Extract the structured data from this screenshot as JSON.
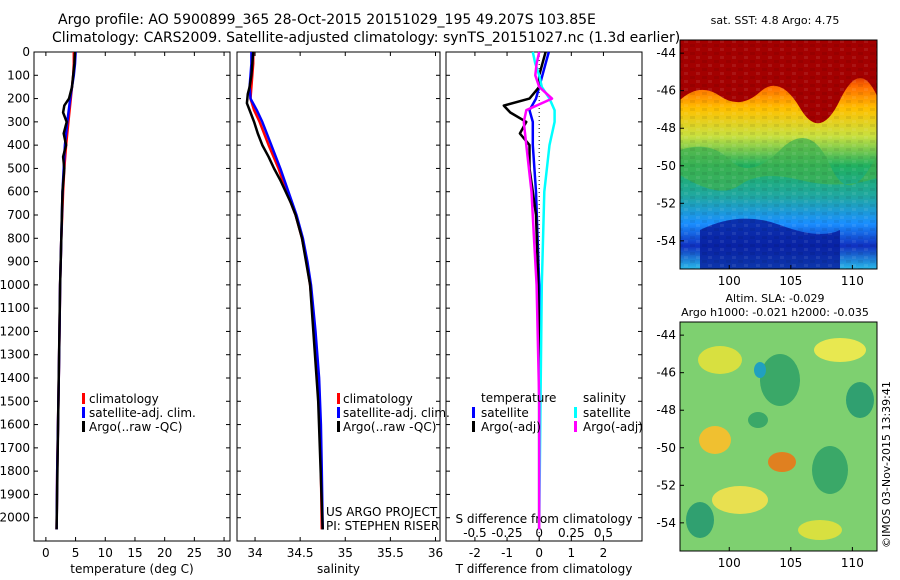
{
  "header": {
    "line1": "Argo profile: AO 5900899_365 28-Oct-2015 20151029_195 49.207S 103.85E",
    "line2": "Climatology: CARS2009. Satellite-adjusted climatology: synTS_20151027.nc (1.3d earlier)"
  },
  "legend_temp": {
    "clim": "climatology",
    "sat": "satellite-adj. clim.",
    "argo": "Argo(..raw -QC)"
  },
  "legend_sal": {
    "clim": "climatology",
    "sat": "satellite-adj. clim.",
    "argo": "Argo(..raw -QC)"
  },
  "legend_diff": {
    "temp_head": "temperature",
    "sal_head": "salinity",
    "t_sat": "satellite",
    "t_argo": "Argo(-adj)",
    "s_sat": "satellite",
    "s_argo": "Argo(-adj)"
  },
  "project": {
    "line1": "US ARGO PROJECT",
    "line2": "PI: STEPHEN RISER"
  },
  "map1": {
    "title": "sat. SST: 4.8 Argo: 4.75"
  },
  "map2": {
    "title1": "Altim. SLA: -0.029",
    "title2": "Argo h1000: -0.021 h2000: -0.035"
  },
  "credit": "©IMOS 03-Nov-2015 13:39:41",
  "colors": {
    "climatology": "#ff0000",
    "satellite": "#0000ff",
    "argo": "#000000",
    "t_sat": "#0000ff",
    "t_argo": "#000000",
    "s_sat": "#00ffff",
    "s_argo": "#ff00ff"
  },
  "chart_data": [
    {
      "type": "line",
      "xlabel": "temperature (deg C)",
      "ylabel": "",
      "xlim": [
        -2,
        31
      ],
      "ylim": [
        2100,
        0
      ],
      "xticks": [
        0,
        5,
        10,
        15,
        20,
        25,
        30
      ],
      "yticks": [
        0,
        100,
        200,
        300,
        400,
        500,
        600,
        700,
        800,
        900,
        1000,
        1100,
        1200,
        1300,
        1400,
        1500,
        1600,
        1700,
        1800,
        1900,
        2000
      ],
      "series": [
        {
          "name": "climatology",
          "color": "#ff0000",
          "depth": [
            0,
            50,
            100,
            150,
            200,
            300,
            400,
            500,
            600,
            800,
            1000,
            1200,
            1500,
            1800,
            2050
          ],
          "values": [
            4.7,
            4.7,
            4.6,
            4.4,
            4.2,
            3.8,
            3.4,
            3.1,
            2.9,
            2.6,
            2.4,
            2.3,
            2.1,
            1.9,
            1.8
          ]
        },
        {
          "name": "satellite-adj. clim.",
          "color": "#0000ff",
          "depth": [
            0,
            50,
            100,
            150,
            200,
            300,
            400,
            500,
            600,
            800,
            1000,
            1200,
            1500,
            1800,
            2050
          ],
          "values": [
            5.0,
            4.9,
            4.7,
            4.4,
            4.1,
            3.6,
            3.2,
            3.0,
            2.8,
            2.6,
            2.4,
            2.3,
            2.1,
            1.9,
            1.8
          ]
        },
        {
          "name": "Argo(..raw -QC)",
          "color": "#000000",
          "depth": [
            0,
            50,
            100,
            150,
            200,
            230,
            260,
            300,
            350,
            400,
            450,
            500,
            600,
            800,
            1000,
            1500,
            2050
          ],
          "values": [
            4.9,
            4.8,
            4.6,
            4.4,
            3.9,
            3.1,
            2.9,
            3.5,
            3.0,
            3.4,
            2.9,
            3.1,
            2.8,
            2.6,
            2.4,
            2.1,
            1.8
          ]
        }
      ]
    },
    {
      "type": "line",
      "xlabel": "salinity",
      "ylabel": "",
      "xlim": [
        33.8,
        36.05
      ],
      "ylim": [
        2100,
        0
      ],
      "xticks": [
        34,
        34.5,
        35,
        35.5,
        36
      ],
      "series": [
        {
          "name": "climatology",
          "color": "#ff0000",
          "depth": [
            0,
            50,
            100,
            150,
            200,
            250,
            300,
            400,
            500,
            600,
            700,
            800,
            900,
            1000,
            1200,
            1400,
            1600,
            1800,
            2050
          ],
          "values": [
            33.98,
            33.98,
            33.97,
            33.96,
            33.95,
            33.99,
            34.05,
            34.15,
            34.26,
            34.35,
            34.45,
            34.52,
            34.57,
            34.61,
            34.66,
            34.7,
            34.72,
            34.73,
            34.74
          ]
        },
        {
          "name": "satellite-adj. clim.",
          "color": "#0000ff",
          "depth": [
            0,
            50,
            100,
            150,
            200,
            250,
            300,
            400,
            500,
            600,
            700,
            800,
            900,
            1000,
            1200,
            1400,
            1600,
            1800,
            2050
          ],
          "values": [
            33.96,
            33.96,
            33.95,
            33.94,
            33.95,
            34.02,
            34.08,
            34.18,
            34.28,
            34.37,
            34.46,
            34.53,
            34.58,
            34.62,
            34.67,
            34.71,
            34.73,
            34.74,
            34.75
          ]
        },
        {
          "name": "Argo(..raw -QC)",
          "color": "#000000",
          "depth": [
            0,
            50,
            100,
            150,
            180,
            220,
            260,
            300,
            350,
            400,
            450,
            500,
            550,
            600,
            650,
            700,
            800,
            1000,
            1500,
            2050
          ],
          "values": [
            33.98,
            33.97,
            33.96,
            33.94,
            33.92,
            33.91,
            33.95,
            33.99,
            34.03,
            34.08,
            34.15,
            34.21,
            34.28,
            34.34,
            34.4,
            34.45,
            34.52,
            34.61,
            34.7,
            34.75
          ]
        }
      ]
    },
    {
      "type": "line",
      "xlabel": "T difference from climatology",
      "xlabel2": "S difference from climatology",
      "ylabel": "",
      "xlim": [
        -2.9,
        3.2
      ],
      "ylim": [
        2100,
        0
      ],
      "xticks": [
        -2,
        -1,
        0,
        1,
        2
      ],
      "xticks2": [
        -0.5,
        -0.25,
        0,
        0.25,
        0.5
      ],
      "xtick2_labels": [
        "-0.5",
        "-0.25",
        "0",
        "0.25",
        "0.5"
      ],
      "series": [
        {
          "name": "temperature satellite",
          "color": "#0000ff",
          "depth": [
            0,
            50,
            100,
            150,
            200,
            250,
            300,
            400,
            600,
            800,
            1000,
            1500,
            2050
          ],
          "values": [
            0.3,
            0.2,
            0.1,
            0.0,
            -0.1,
            -0.3,
            -0.2,
            -0.2,
            -0.1,
            -0.05,
            0.0,
            0.0,
            0.0
          ]
        },
        {
          "name": "temperature Argo(-adj)",
          "color": "#000000",
          "depth": [
            0,
            50,
            100,
            150,
            200,
            230,
            260,
            300,
            350,
            400,
            500,
            600,
            700,
            900,
            1200,
            1600,
            2050
          ],
          "values": [
            0.2,
            0.1,
            0.0,
            0.0,
            -0.3,
            -1.1,
            -0.9,
            -0.4,
            -0.6,
            -0.3,
            -0.3,
            -0.2,
            -0.1,
            -0.05,
            0.0,
            0.0,
            0.0
          ]
        },
        {
          "name": "salinity satellite",
          "color": "#00ffff",
          "depth": [
            0,
            50,
            100,
            150,
            200,
            250,
            300,
            400,
            600,
            1000,
            1500,
            2050
          ],
          "values": [
            -0.05,
            -0.03,
            0.0,
            0.02,
            0.08,
            0.12,
            0.12,
            0.08,
            0.04,
            0.02,
            0.01,
            0.0
          ]
        },
        {
          "name": "salinity Argo(-adj)",
          "color": "#ff00ff",
          "depth": [
            0,
            50,
            100,
            150,
            200,
            250,
            300,
            400,
            600,
            800,
            1000,
            1500,
            2050
          ],
          "values": [
            0.0,
            -0.02,
            -0.03,
            0.0,
            0.1,
            -0.1,
            -0.12,
            -0.1,
            -0.06,
            -0.04,
            -0.02,
            0.0,
            0.0
          ]
        }
      ]
    },
    {
      "type": "heatmap",
      "title": "sat. SST: 4.8 Argo: 4.75",
      "xlim": [
        96,
        112
      ],
      "ylim": [
        -55.5,
        -43.3
      ],
      "xticks": [
        100,
        105,
        110
      ],
      "yticks": [
        -44,
        -46,
        -48,
        -50,
        -52,
        -54
      ]
    },
    {
      "type": "heatmap",
      "title": "Altim. SLA: -0.029",
      "subtitle": "Argo h1000: -0.021 h2000: -0.035",
      "xlim": [
        96,
        112
      ],
      "ylim": [
        -55.5,
        -43.3
      ],
      "xticks": [
        100,
        105,
        110
      ],
      "yticks": [
        -44,
        -46,
        -48,
        -50,
        -52,
        -54
      ]
    }
  ]
}
